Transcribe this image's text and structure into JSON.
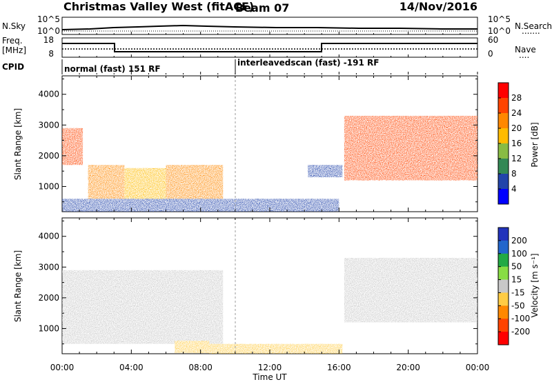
{
  "header": {
    "title": "Christmas Valley West (fitACF)",
    "beam": "Beam 07",
    "date": "14/Nov/2016"
  },
  "noise_panel": {
    "left_label": "N.Sky",
    "left_ticks": [
      "10^5",
      "10^0"
    ],
    "right_ticks": [
      "10^5",
      "10^0"
    ],
    "right_label": "N.Search",
    "right_legend_line": "......."
  },
  "freq_panel": {
    "left_label_line1": "Freq.",
    "left_label_line2": "[MHz]",
    "left_ticks": [
      "18",
      "8"
    ],
    "right_ticks": [
      "60",
      "0"
    ],
    "right_label": "Nave",
    "right_legend_line": "...."
  },
  "cpid": {
    "label": "CPID",
    "segment1": "normal (fast) 151 RF",
    "segment2": "interleavedscan (fast) -191 RF"
  },
  "axes": {
    "ylabel": "Slant Range [km]",
    "xlabel": "Time UT",
    "y_ticks": [
      "4000",
      "3000",
      "2000",
      "1000"
    ],
    "x_ticks": [
      "00:00",
      "04:00",
      "08:00",
      "12:00",
      "16:00",
      "20:00",
      "00:00"
    ]
  },
  "power_colorbar": {
    "label": "Power [dB]",
    "ticks": [
      "28",
      "24",
      "20",
      "16",
      "12",
      "8",
      "4"
    ],
    "colors": [
      "#ff0000",
      "#ff4400",
      "#ff8800",
      "#ffbb00",
      "#88bb44",
      "#338855",
      "#2244aa",
      "#0000ff"
    ]
  },
  "velocity_colorbar": {
    "label": "Velocity [m s⁻¹]",
    "ticks": [
      "200",
      "100",
      "50",
      "15",
      "-15",
      "-50",
      "-100",
      "-200"
    ],
    "colors": [
      "#2233bb",
      "#2266cc",
      "#22aa44",
      "#88dd44",
      "#c8c8c8",
      "#ffcc44",
      "#ff8800",
      "#ff4400",
      "#ff0000"
    ]
  },
  "chart_data": {
    "type": "heatmap",
    "x_range_hours": [
      0,
      24
    ],
    "y_range_km": [
      180,
      4600
    ],
    "cpid_switch_hour": 10.0,
    "freq_step": {
      "high_mhz": 17.5,
      "low_mhz": 10.5,
      "low_from_hour": 3.0,
      "low_to_hour": 15.0
    },
    "nave_level": 22,
    "power_echo_regions": [
      {
        "t_start": 0.0,
        "t_end": 1.2,
        "r_min": 1700,
        "r_max": 2900,
        "power_db": 26
      },
      {
        "t_start": 1.5,
        "t_end": 3.6,
        "r_min": 600,
        "r_max": 1700,
        "power_db": 22
      },
      {
        "t_start": 3.6,
        "t_end": 6.0,
        "r_min": 500,
        "r_max": 1600,
        "power_db": 20
      },
      {
        "t_start": 6.0,
        "t_end": 9.3,
        "r_min": 300,
        "r_max": 1700,
        "power_db": 24
      },
      {
        "t_start": 0.0,
        "t_end": 16.0,
        "r_min": 180,
        "r_max": 600,
        "power_db": 8
      },
      {
        "t_start": 14.2,
        "t_end": 16.2,
        "r_min": 1300,
        "r_max": 1700,
        "power_db": 8
      },
      {
        "t_start": 16.3,
        "t_end": 24.0,
        "r_min": 1200,
        "r_max": 3300,
        "power_db": 28
      }
    ],
    "velocity_echo_regions": [
      {
        "t_start": 0.0,
        "t_end": 9.3,
        "r_min": 500,
        "r_max": 2900,
        "velocity_ms": 0
      },
      {
        "t_start": 6.5,
        "t_end": 8.5,
        "r_min": 200,
        "r_max": 600,
        "velocity_ms": -40
      },
      {
        "t_start": 8.5,
        "t_end": 16.2,
        "r_min": 180,
        "r_max": 500,
        "velocity_ms": -30
      },
      {
        "t_start": 16.3,
        "t_end": 24.0,
        "r_min": 1200,
        "r_max": 3300,
        "velocity_ms": 0
      }
    ]
  }
}
